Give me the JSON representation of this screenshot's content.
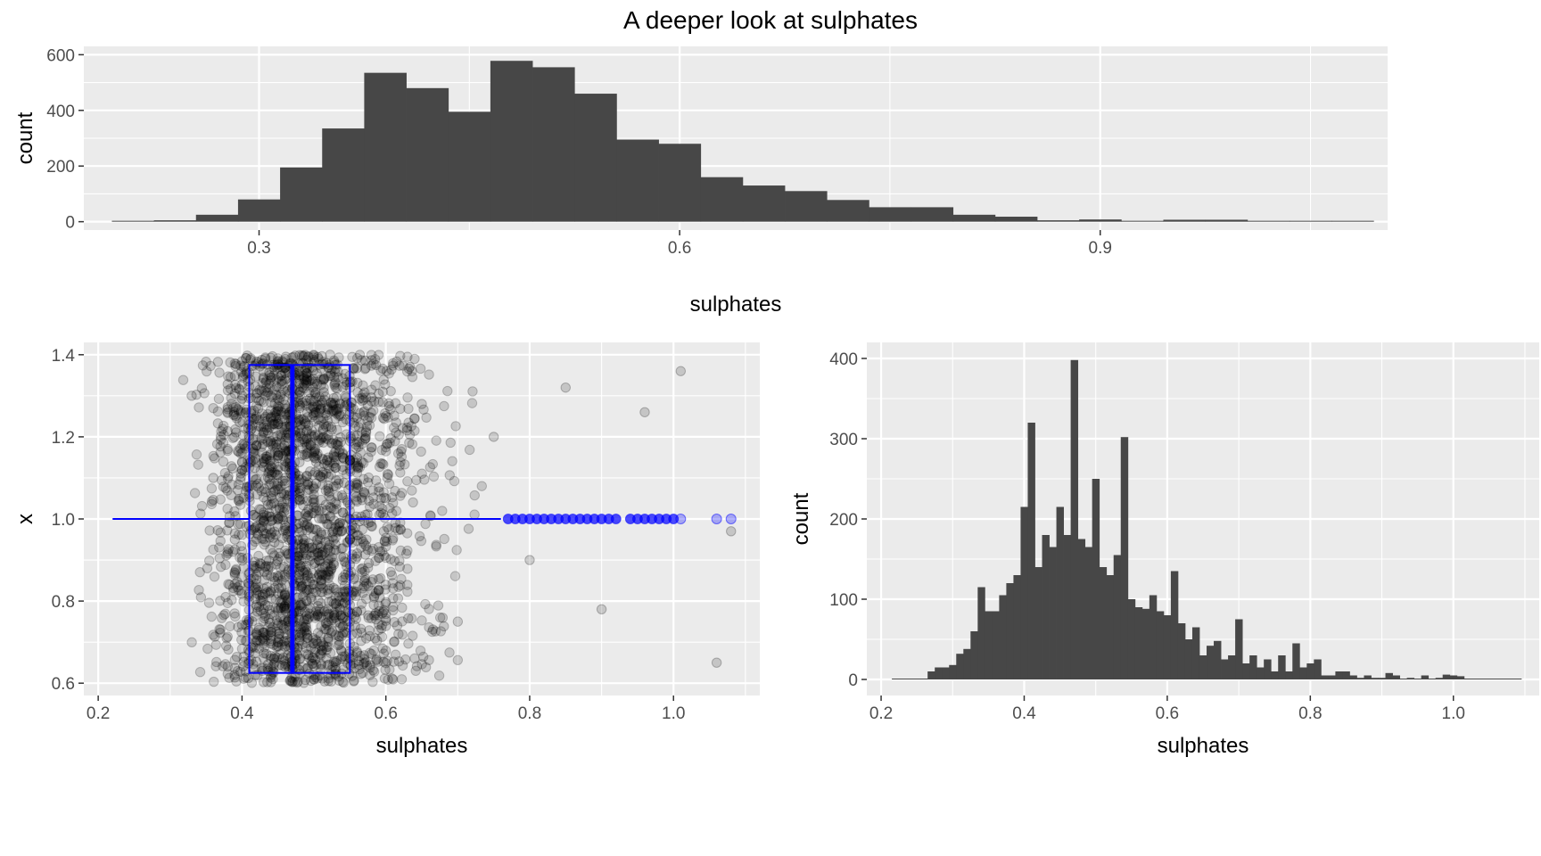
{
  "title": "A deeper look at sulphates",
  "colors": {
    "panel": "#ebebeb",
    "grid": "#ffffff",
    "bar": "#474747",
    "point": "#000000",
    "box": "#0000ff"
  },
  "chart_data": [
    {
      "type": "bar",
      "subtype": "histogram",
      "xlabel": "sulphates",
      "ylabel": "count",
      "xlim": [
        0.175,
        1.105
      ],
      "ylim": [
        -30,
        630
      ],
      "xticks": [
        0.3,
        0.6,
        0.9
      ],
      "xtick_labels": [
        "0.3",
        "0.6",
        "0.9"
      ],
      "yticks": [
        0,
        200,
        400,
        600
      ],
      "ytick_labels": [
        "0",
        "200",
        "400",
        "600"
      ],
      "bin_width": 0.03,
      "bin_centers": [
        0.21,
        0.24,
        0.27,
        0.3,
        0.33,
        0.36,
        0.39,
        0.42,
        0.45,
        0.48,
        0.51,
        0.54,
        0.57,
        0.6,
        0.63,
        0.66,
        0.69,
        0.72,
        0.75,
        0.78,
        0.81,
        0.84,
        0.87,
        0.9,
        0.93,
        0.96,
        0.99,
        1.02,
        1.05,
        1.08
      ],
      "values": [
        2,
        5,
        25,
        80,
        195,
        335,
        535,
        480,
        395,
        578,
        555,
        460,
        295,
        280,
        160,
        130,
        110,
        78,
        52,
        52,
        25,
        18,
        5,
        8,
        3,
        7,
        7,
        3,
        0,
        3
      ]
    },
    {
      "type": "scatter",
      "subtype": "jittered points with boxplot",
      "xlabel": "sulphates",
      "ylabel": "x",
      "xlim": [
        0.18,
        1.12
      ],
      "ylim": [
        0.57,
        1.43
      ],
      "xticks": [
        0.2,
        0.4,
        0.6,
        0.8,
        1.0
      ],
      "xtick_labels": [
        "0.2",
        "0.4",
        "0.6",
        "0.8",
        "1.0"
      ],
      "yticks": [
        0.6,
        0.8,
        1.0,
        1.2,
        1.4
      ],
      "ytick_labels": [
        "0.6",
        "0.8",
        "1.0",
        "1.2",
        "1.4"
      ],
      "boxplot": {
        "x": 1.0,
        "min": 0.22,
        "q1": 0.41,
        "median": 0.47,
        "q3": 0.55,
        "whisker_high": 0.76,
        "y_bottom": 0.625,
        "y_top": 1.375
      },
      "outliers": [
        0.77,
        0.78,
        0.79,
        0.8,
        0.81,
        0.82,
        0.83,
        0.84,
        0.85,
        0.86,
        0.87,
        0.88,
        0.89,
        0.9,
        0.91,
        0.92,
        0.94,
        0.95,
        0.96,
        0.97,
        0.98,
        0.99,
        1.0,
        1.01,
        1.06,
        1.08
      ],
      "sample_points": [
        [
          0.33,
          1.3
        ],
        [
          0.36,
          1.1
        ],
        [
          0.39,
          0.95
        ],
        [
          0.42,
          1.25
        ],
        [
          0.45,
          0.7
        ],
        [
          0.48,
          1.35
        ],
        [
          0.51,
          0.85
        ],
        [
          0.54,
          1.15
        ],
        [
          0.57,
          0.65
        ],
        [
          0.6,
          1.05
        ],
        [
          0.65,
          1.28
        ],
        [
          0.7,
          0.75
        ],
        [
          0.75,
          1.2
        ],
        [
          0.8,
          0.9
        ],
        [
          0.85,
          1.32
        ],
        [
          0.9,
          0.78
        ],
        [
          0.96,
          1.26
        ],
        [
          1.01,
          1.36
        ],
        [
          1.06,
          0.65
        ],
        [
          1.08,
          0.97
        ]
      ]
    },
    {
      "type": "bar",
      "subtype": "histogram",
      "xlabel": "sulphates",
      "ylabel": "count",
      "xlim": [
        0.18,
        1.12
      ],
      "ylim": [
        -20,
        420
      ],
      "xticks": [
        0.2,
        0.4,
        0.6,
        0.8,
        1.0
      ],
      "xtick_labels": [
        "0.2",
        "0.4",
        "0.6",
        "0.8",
        "1.0"
      ],
      "yticks": [
        0,
        100,
        200,
        300,
        400
      ],
      "ytick_labels": [
        "0",
        "100",
        "200",
        "300",
        "400"
      ],
      "bin_width": 0.01,
      "bin_start": 0.215,
      "values": [
        1,
        1,
        0,
        0,
        0,
        10,
        15,
        15,
        18,
        32,
        38,
        60,
        115,
        85,
        85,
        105,
        120,
        130,
        215,
        320,
        140,
        180,
        165,
        215,
        180,
        398,
        175,
        165,
        250,
        140,
        130,
        155,
        302,
        100,
        90,
        88,
        105,
        85,
        80,
        135,
        70,
        50,
        65,
        30,
        42,
        48,
        25,
        30,
        75,
        20,
        30,
        15,
        25,
        10,
        30,
        10,
        45,
        15,
        20,
        25,
        5,
        5,
        10,
        10,
        5,
        2,
        5,
        2,
        2,
        8,
        5,
        0,
        2,
        0,
        5,
        0,
        2,
        6,
        5,
        4,
        1,
        1,
        0,
        0,
        0,
        1,
        0,
        1
      ]
    }
  ]
}
